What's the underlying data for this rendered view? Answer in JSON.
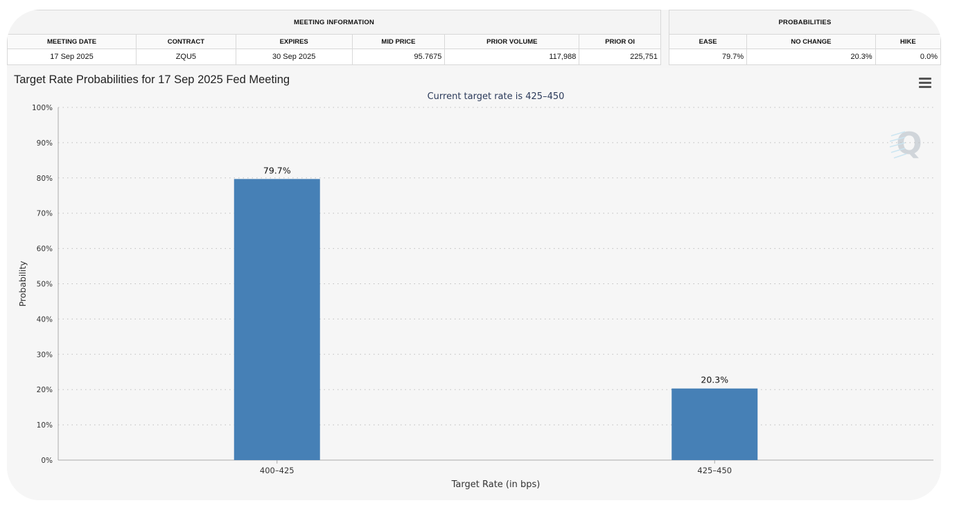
{
  "meeting_table": {
    "title": "MEETING INFORMATION",
    "columns": [
      "MEETING DATE",
      "CONTRACT",
      "EXPIRES",
      "MID PRICE",
      "PRIOR VOLUME",
      "PRIOR OI"
    ],
    "row": [
      "17 Sep 2025",
      "ZQU5",
      "30 Sep 2025",
      "95.7675",
      "117,988",
      "225,751"
    ]
  },
  "prob_table": {
    "title": "PROBABILITIES",
    "columns": [
      "EASE",
      "NO CHANGE",
      "HIKE"
    ],
    "row": [
      "79.7%",
      "20.3%",
      "0.0%"
    ]
  },
  "chart_data": {
    "type": "bar",
    "title": "Target Rate Probabilities for 17 Sep 2025 Fed Meeting",
    "subtitle": "Current target rate is 425–450",
    "categories": [
      "400–425",
      "425–450"
    ],
    "values": [
      79.7,
      20.3
    ],
    "data_labels": [
      "79.7%",
      "20.3%"
    ],
    "xlabel": "Target Rate (in bps)",
    "ylabel": "Probability",
    "ylim": [
      0,
      100
    ],
    "yticks": [
      0,
      10,
      20,
      30,
      40,
      50,
      60,
      70,
      80,
      90,
      100
    ],
    "ytick_labels": [
      "0%",
      "10%",
      "20%",
      "30%",
      "40%",
      "50%",
      "60%",
      "70%",
      "80%",
      "90%",
      "100%"
    ],
    "grid": true,
    "bar_color": "#4680b6"
  },
  "icons": {
    "menu": "hamburger-menu-icon",
    "watermark": "q-logo-watermark"
  }
}
